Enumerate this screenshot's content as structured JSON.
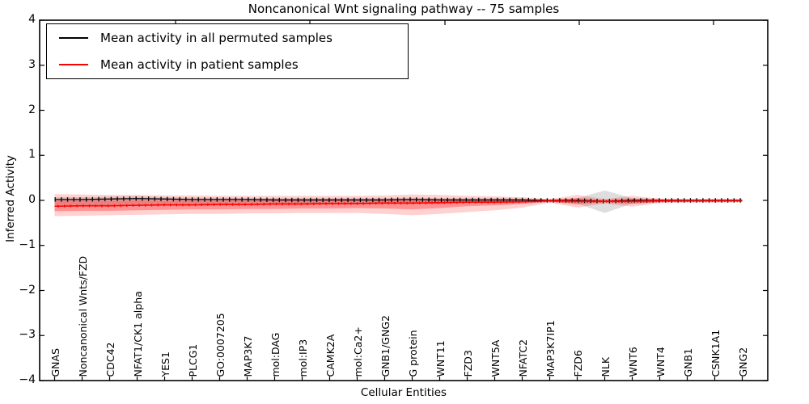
{
  "chart_data": {
    "type": "line",
    "title": "Noncanonical Wnt signaling pathway -- 75 samples",
    "xlabel": "Cellular Entities",
    "ylabel": "Inferred Activity",
    "ylim": [
      -4,
      4
    ],
    "yticks": [
      4,
      3,
      2,
      1,
      0,
      -1,
      -2,
      -3,
      -4
    ],
    "grid": false,
    "legend_position": "upper left",
    "categories": [
      "GNAS",
      "Noncanonical Wnts/FZD",
      "CDC42",
      "NFAT1/CK1 alpha",
      "YES1",
      "PLCG1",
      "GO:0007205",
      "MAP3K7",
      "mol:DAG",
      "mol:IP3",
      "CAMK2A",
      "mol:Ca2+",
      "GNB1/GNG2",
      "G protein",
      "WNT11",
      "FZD3",
      "WNT5A",
      "NFATC2",
      "MAP3K7IP1",
      "FZD6",
      "NLK",
      "WNT6",
      "WNT4",
      "GNB1",
      "CSNK1A1",
      "GNG2"
    ],
    "series": [
      {
        "name": "Mean activity in all permuted samples",
        "color": "#000000",
        "band_fill": "rgba(0,0,0,0.13)",
        "values": [
          0.02,
          0.02,
          0.03,
          0.04,
          0.03,
          0.02,
          0.02,
          0.02,
          0.01,
          0.01,
          0.01,
          0.01,
          0.01,
          0.02,
          0.01,
          0.01,
          0.01,
          0.01,
          0.0,
          0.0,
          -0.02,
          0.0,
          0.0,
          0.0,
          0.0,
          0.0
        ],
        "band_upper": [
          0.07,
          0.07,
          0.08,
          0.09,
          0.07,
          0.06,
          0.06,
          0.05,
          0.05,
          0.05,
          0.05,
          0.05,
          0.05,
          0.06,
          0.05,
          0.05,
          0.05,
          0.04,
          0.02,
          0.05,
          0.22,
          0.05,
          0.03,
          0.03,
          0.03,
          0.02
        ],
        "band_lower": [
          -0.1,
          -0.1,
          -0.1,
          -0.11,
          -0.09,
          -0.08,
          -0.08,
          -0.07,
          -0.07,
          -0.07,
          -0.07,
          -0.07,
          -0.07,
          -0.08,
          -0.07,
          -0.06,
          -0.06,
          -0.05,
          -0.03,
          -0.07,
          -0.28,
          -0.07,
          -0.04,
          -0.03,
          -0.03,
          -0.02
        ]
      },
      {
        "name": "Mean activity in patient samples",
        "color": "#ff0000",
        "band_fill": "rgba(255,0,0,0.18)",
        "inner_band_fill": "rgba(255,0,0,0.30)",
        "values": [
          -0.13,
          -0.12,
          -0.12,
          -0.11,
          -0.1,
          -0.1,
          -0.09,
          -0.09,
          -0.08,
          -0.08,
          -0.07,
          -0.07,
          -0.06,
          -0.06,
          -0.05,
          -0.04,
          -0.04,
          -0.03,
          -0.01,
          -0.02,
          -0.02,
          -0.02,
          -0.01,
          -0.01,
          -0.01,
          -0.01
        ],
        "band_upper": [
          0.14,
          0.13,
          0.12,
          0.12,
          0.11,
          0.11,
          0.1,
          0.1,
          0.1,
          0.1,
          0.1,
          0.1,
          0.11,
          0.13,
          0.12,
          0.1,
          0.09,
          0.07,
          0.03,
          0.12,
          0.03,
          0.1,
          0.04,
          0.03,
          0.03,
          0.03
        ],
        "band_lower": [
          -0.35,
          -0.34,
          -0.33,
          -0.32,
          -0.31,
          -0.3,
          -0.3,
          -0.29,
          -0.29,
          -0.28,
          -0.28,
          -0.28,
          -0.3,
          -0.33,
          -0.3,
          -0.26,
          -0.22,
          -0.16,
          -0.05,
          -0.16,
          -0.07,
          -0.14,
          -0.06,
          -0.05,
          -0.05,
          -0.04
        ],
        "inner_band_upper": [
          0.0,
          0.0,
          0.0,
          0.01,
          0.0,
          0.0,
          0.0,
          0.0,
          0.0,
          0.0,
          0.0,
          0.0,
          0.01,
          0.02,
          0.02,
          0.02,
          0.02,
          0.02,
          0.01,
          0.05,
          0.01,
          0.04,
          0.02,
          0.01,
          0.01,
          0.01
        ],
        "inner_band_lower": [
          -0.24,
          -0.23,
          -0.23,
          -0.22,
          -0.21,
          -0.2,
          -0.2,
          -0.19,
          -0.19,
          -0.18,
          -0.18,
          -0.17,
          -0.18,
          -0.2,
          -0.17,
          -0.13,
          -0.11,
          -0.08,
          -0.03,
          -0.09,
          -0.04,
          -0.08,
          -0.04,
          -0.03,
          -0.03,
          -0.02
        ]
      }
    ]
  }
}
